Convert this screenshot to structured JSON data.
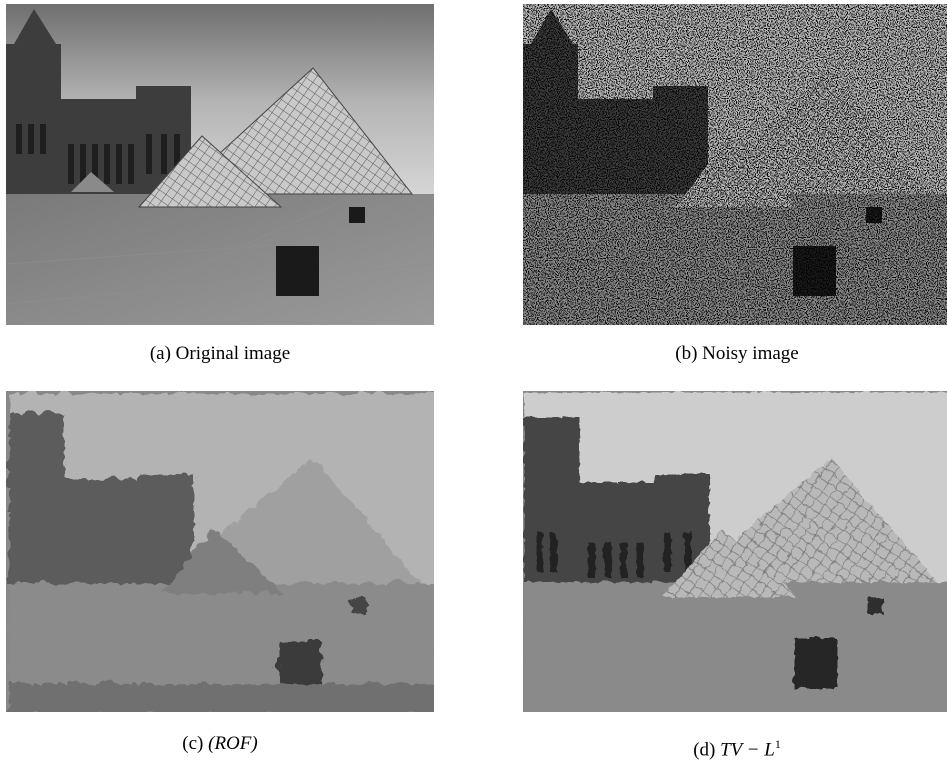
{
  "figure": {
    "panels": [
      {
        "id": "a",
        "caption_tag": "(a)",
        "caption_text": "Original image",
        "is_math": false,
        "image_desc": "Original image"
      },
      {
        "id": "b",
        "caption_tag": "(b)",
        "caption_text": "Noisy image",
        "is_math": false,
        "image_desc": "Noisy image"
      },
      {
        "id": "c",
        "caption_tag": "(c)",
        "caption_text": "(ROF)",
        "is_math": true,
        "image_desc": "(ROF)"
      },
      {
        "id": "d",
        "caption_tag": "(d)",
        "caption_text": "TV − L",
        "caption_sup": "1",
        "is_math": true,
        "image_desc": "TV − L1"
      }
    ]
  }
}
